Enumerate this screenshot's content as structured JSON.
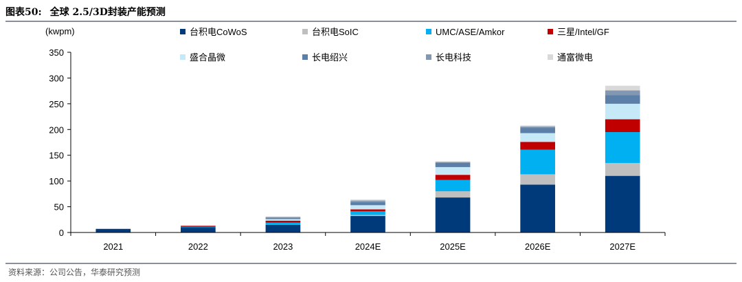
{
  "figure": {
    "number": "图表50:",
    "title": "全球 2.5/3D封装产能预测",
    "source": "资料来源：公司公告，华泰研究预测"
  },
  "chart_data": {
    "type": "bar",
    "stacked": true,
    "unit": "(kwpm)",
    "categories": [
      "2021",
      "2022",
      "2023",
      "2024E",
      "2025E",
      "2026E",
      "2027E"
    ],
    "ylim": [
      0,
      350
    ],
    "yticks": [
      0,
      50,
      100,
      150,
      200,
      250,
      300,
      350
    ],
    "grid": false,
    "legend_position": "top",
    "series": [
      {
        "name": "台积电CoWoS",
        "color": "#003A7A",
        "values": [
          7,
          10,
          15,
          32,
          68,
          93,
          110
        ]
      },
      {
        "name": "台积电SoIC",
        "color": "#BFBFBF",
        "values": [
          0,
          0,
          0,
          2,
          12,
          20,
          25
        ]
      },
      {
        "name": "UMC/ASE/Amkor",
        "color": "#00B0F0",
        "values": [
          0,
          1,
          4,
          7,
          22,
          48,
          60
        ]
      },
      {
        "name": "三星/Intel/GF",
        "color": "#C00000",
        "values": [
          0,
          2,
          4,
          4,
          10,
          15,
          25
        ]
      },
      {
        "name": "盛合晶微",
        "color": "#C5E9F7",
        "values": [
          0,
          0,
          3,
          8,
          15,
          17,
          30
        ]
      },
      {
        "name": "长电绍兴",
        "color": "#5B7FA6",
        "values": [
          0,
          0,
          2,
          6,
          8,
          10,
          17
        ]
      },
      {
        "name": "长电科技",
        "color": "#8497B0",
        "values": [
          0,
          0,
          2,
          3,
          2,
          3,
          9
        ]
      },
      {
        "name": "通富微电",
        "color": "#D9D9D9",
        "values": [
          0,
          0,
          1,
          2,
          1,
          2,
          9
        ]
      }
    ]
  }
}
